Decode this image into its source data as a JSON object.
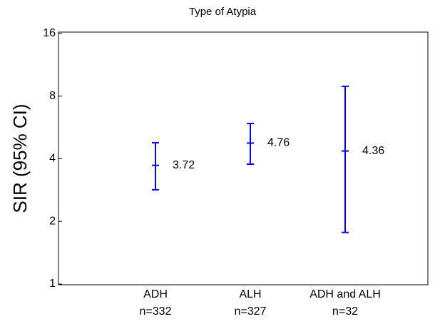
{
  "chart_data": {
    "type": "errorbar",
    "title": "Type of Atypia",
    "y_label": "SIR (95% CI)",
    "categories": [
      "ADH",
      "ALH",
      "ADH and ALH"
    ],
    "sample_sizes": [
      "n=332",
      "n=327",
      "n=32"
    ],
    "values": [
      3.72,
      4.76,
      4.36
    ],
    "lower": [
      2.84,
      3.77,
      1.77
    ],
    "upper": [
      4.78,
      5.91,
      8.92
    ],
    "color": "#0000ff",
    "y_scale": "log",
    "ylim": [
      1,
      16
    ],
    "yticks": [
      1,
      2,
      4,
      8,
      16
    ]
  }
}
